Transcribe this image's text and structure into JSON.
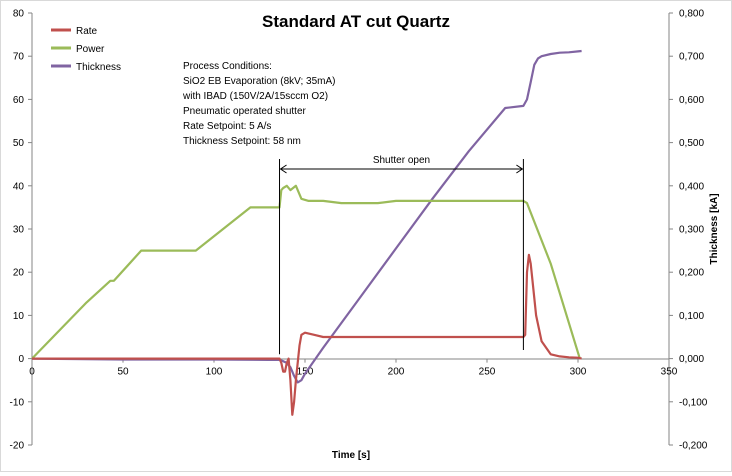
{
  "chart_data": {
    "type": "line",
    "title": "Standard AT cut Quartz",
    "xlabel": "Time [s]",
    "ylabel": "",
    "y2label": "Thickness [kA]",
    "xlim": [
      0,
      350
    ],
    "ylim": [
      -20,
      80
    ],
    "y2lim": [
      -0.2,
      0.8
    ],
    "x_ticks": [
      0,
      50,
      100,
      150,
      200,
      250,
      300,
      350
    ],
    "y_ticks": [
      -20,
      -10,
      0,
      10,
      20,
      30,
      40,
      50,
      60,
      70,
      80
    ],
    "y2_ticks": [
      "-0,200",
      "-0,100",
      "0,000",
      "0,100",
      "0,200",
      "0,300",
      "0,400",
      "0,500",
      "0,600",
      "0,700",
      "0,800"
    ],
    "grid": "off",
    "legend_position": "top-left",
    "colors": {
      "Rate": "#c0504d",
      "Power": "#9bbb59",
      "Thickness": "#8064a2"
    },
    "series": [
      {
        "name": "Rate",
        "axis": "left",
        "x": [
          0,
          50,
          100,
          130,
          136,
          137,
          138,
          139,
          140,
          141,
          142,
          143,
          144,
          145,
          146,
          147,
          148,
          150,
          155,
          160,
          170,
          180,
          200,
          230,
          260,
          270,
          271,
          272,
          273,
          274,
          275,
          277,
          280,
          285,
          290,
          295,
          300,
          302
        ],
        "values": [
          0,
          0,
          0,
          0,
          0,
          -1,
          -3,
          -3,
          -1,
          0,
          -5,
          -13,
          -10,
          -5,
          -1,
          3,
          5.5,
          6,
          5.5,
          5,
          5,
          5,
          5,
          5,
          5,
          5,
          5.5,
          20,
          24,
          22,
          18,
          10,
          4,
          1,
          0.5,
          0.3,
          0.2,
          0
        ]
      },
      {
        "name": "Power",
        "axis": "left",
        "x": [
          0,
          30,
          43,
          45,
          60,
          90,
          120,
          136,
          137,
          138,
          140,
          142,
          145,
          148,
          152,
          160,
          170,
          180,
          190,
          200,
          220,
          240,
          260,
          270,
          272,
          285,
          301
        ],
        "values": [
          0,
          13,
          18,
          18,
          25,
          25,
          35,
          35,
          39,
          39.5,
          40,
          39,
          40,
          37,
          36.5,
          36.5,
          36,
          36,
          36,
          36.5,
          36.5,
          36.5,
          36.5,
          36.5,
          36,
          22,
          0
        ]
      },
      {
        "name": "Thickness",
        "axis": "right",
        "x": [
          0,
          50,
          100,
          130,
          136,
          138,
          140,
          142,
          144,
          146,
          148,
          150,
          160,
          180,
          200,
          220,
          240,
          260,
          270,
          272,
          274,
          276,
          278,
          280,
          285,
          290,
          295,
          300,
          302
        ],
        "values": [
          0,
          -0.002,
          -0.002,
          -0.003,
          -0.003,
          -0.006,
          -0.01,
          -0.02,
          -0.04,
          -0.055,
          -0.05,
          -0.035,
          0.025,
          0.14,
          0.255,
          0.37,
          0.48,
          0.58,
          0.585,
          0.6,
          0.64,
          0.68,
          0.695,
          0.7,
          0.705,
          0.708,
          0.709,
          0.711,
          0.712
        ]
      }
    ],
    "annotations": {
      "shutter_label": "Shutter open",
      "shutter_start_x": 136,
      "shutter_end_x": 270,
      "process_lines": [
        "Process Conditions:",
        "SiO2 EB Evaporation (8kV; 35mA)",
        "with IBAD (150V/2A/15sccm O2)",
        "Pneumatic operated shutter",
        "Rate Setpoint: 5 A/s",
        "Thickness Setpoint: 58 nm"
      ]
    }
  }
}
